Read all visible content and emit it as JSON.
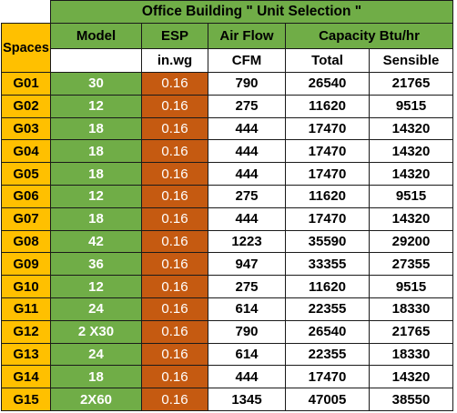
{
  "sheet": {
    "title": "Office Building  \" Unit Selection \"",
    "headers": {
      "spaces": "Spaces",
      "model": "Model",
      "esp": "ESP",
      "airflow": "Air Flow",
      "capacity": "Capacity Btu/hr"
    },
    "units": {
      "esp": "in.wg",
      "airflow": "CFM",
      "total": "Total",
      "sensible": "Sensible"
    },
    "rows": [
      {
        "space": "G01",
        "model": "30",
        "esp": "0.16",
        "cfm": "790",
        "total": "26540",
        "sensible": "21765"
      },
      {
        "space": "G02",
        "model": "12",
        "esp": "0.16",
        "cfm": "275",
        "total": "11620",
        "sensible": "9515"
      },
      {
        "space": "G03",
        "model": "18",
        "esp": "0.16",
        "cfm": "444",
        "total": "17470",
        "sensible": "14320"
      },
      {
        "space": "G04",
        "model": "18",
        "esp": "0.16",
        "cfm": "444",
        "total": "17470",
        "sensible": "14320"
      },
      {
        "space": "G05",
        "model": "18",
        "esp": "0.16",
        "cfm": "444",
        "total": "17470",
        "sensible": "14320"
      },
      {
        "space": "G06",
        "model": "12",
        "esp": "0.16",
        "cfm": "275",
        "total": "11620",
        "sensible": "9515"
      },
      {
        "space": "G07",
        "model": "18",
        "esp": "0.16",
        "cfm": "444",
        "total": "17470",
        "sensible": "14320"
      },
      {
        "space": "G08",
        "model": "42",
        "esp": "0.16",
        "cfm": "1223",
        "total": "35590",
        "sensible": "29200"
      },
      {
        "space": "G09",
        "model": "36",
        "esp": "0.16",
        "cfm": "947",
        "total": "33355",
        "sensible": "27355"
      },
      {
        "space": "G10",
        "model": "12",
        "esp": "0.16",
        "cfm": "275",
        "total": "11620",
        "sensible": "9515"
      },
      {
        "space": "G11",
        "model": "24",
        "esp": "0.16",
        "cfm": "614",
        "total": "22355",
        "sensible": "18330"
      },
      {
        "space": "G12",
        "model": "2 X30",
        "esp": "0.16",
        "cfm": "790",
        "total": "26540",
        "sensible": "21765"
      },
      {
        "space": "G13",
        "model": "24",
        "esp": "0.16",
        "cfm": "614",
        "total": "22355",
        "sensible": "18330"
      },
      {
        "space": "G14",
        "model": "18",
        "esp": "0.16",
        "cfm": "444",
        "total": "17470",
        "sensible": "14320"
      },
      {
        "space": "G15",
        "model": "2X60",
        "esp": "0.16",
        "cfm": "1345",
        "total": "47005",
        "sensible": "38550"
      }
    ]
  },
  "colors": {
    "green": "#70ad47",
    "orange": "#c55a11",
    "yellow": "#ffc000",
    "white": "#ffffff"
  }
}
